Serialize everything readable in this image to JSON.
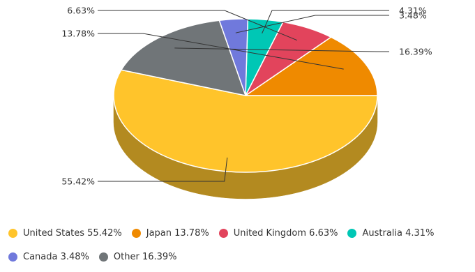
{
  "chart_data": {
    "type": "pie",
    "style": "3d",
    "series": [
      {
        "name": "United States",
        "value": 55.42,
        "label": "55.42%",
        "legend": "United States 55.42%",
        "color": "#FFC42B",
        "side": "#B38A20"
      },
      {
        "name": "Japan",
        "value": 13.78,
        "label": "13.78%",
        "legend": "Japan 13.78%",
        "color": "#EF8A00",
        "side": "#A86100"
      },
      {
        "name": "United Kingdom",
        "value": 6.63,
        "label": "6.63%",
        "legend": "United Kingdom 6.63%",
        "color": "#E2445C",
        "side": "#9E3040"
      },
      {
        "name": "Australia",
        "value": 4.31,
        "label": "4.31%",
        "legend": "Australia 4.31%",
        "color": "#00C7B5",
        "side": "#008C80"
      },
      {
        "name": "Canada",
        "value": 3.48,
        "label": "3.48%",
        "legend": "Canada 3.48%",
        "color": "#7079DC",
        "side": "#4F559A"
      },
      {
        "name": "Other",
        "value": 16.39,
        "label": "16.39%",
        "legend": "Other 16.39%",
        "color": "#707578",
        "side": "#4E5254"
      }
    ],
    "legend_position": "bottom-left"
  }
}
